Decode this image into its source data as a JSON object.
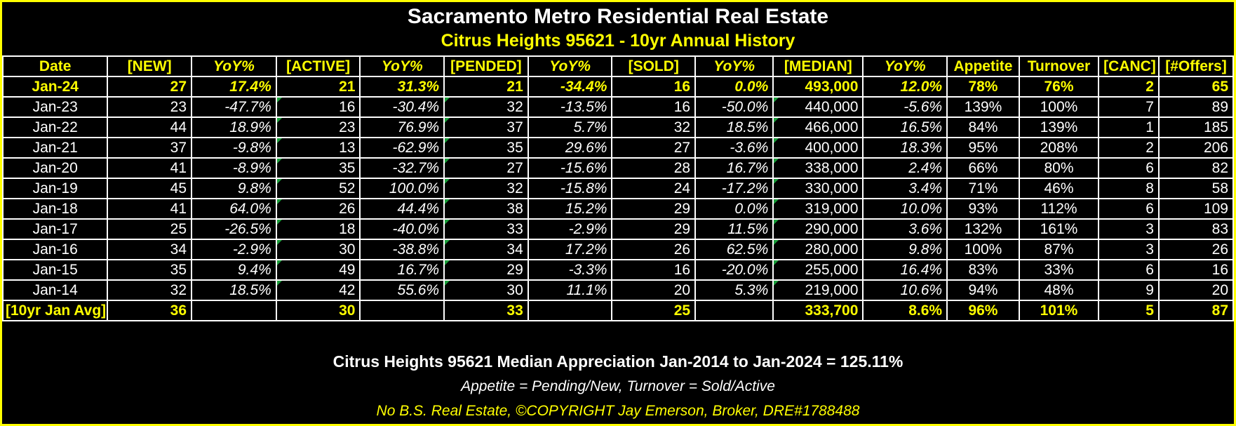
{
  "title": "Sacramento Metro Residential Real Estate",
  "subtitle": "Citrus Heights 95621 - 10yr Annual History",
  "columns": [
    "Date",
    "[NEW]",
    "YoY%",
    "[ACTIVE]",
    "YoY%",
    "[PENDED]",
    "YoY%",
    "[SOLD]",
    "YoY%",
    "[MEDIAN]",
    "YoY%",
    "Appetite",
    "Turnover",
    "[CANC]",
    "[#Offers]"
  ],
  "rows": [
    [
      "Jan-24",
      "27",
      "17.4%",
      "21",
      "31.3%",
      "21",
      "-34.4%",
      "16",
      "0.0%",
      "493,000",
      "12.0%",
      "78%",
      "76%",
      "2",
      "65"
    ],
    [
      "Jan-23",
      "23",
      "-47.7%",
      "16",
      "-30.4%",
      "32",
      "-13.5%",
      "16",
      "-50.0%",
      "440,000",
      "-5.6%",
      "139%",
      "100%",
      "7",
      "89"
    ],
    [
      "Jan-22",
      "44",
      "18.9%",
      "23",
      "76.9%",
      "37",
      "5.7%",
      "32",
      "18.5%",
      "466,000",
      "16.5%",
      "84%",
      "139%",
      "1",
      "185"
    ],
    [
      "Jan-21",
      "37",
      "-9.8%",
      "13",
      "-62.9%",
      "35",
      "29.6%",
      "27",
      "-3.6%",
      "400,000",
      "18.3%",
      "95%",
      "208%",
      "2",
      "206"
    ],
    [
      "Jan-20",
      "41",
      "-8.9%",
      "35",
      "-32.7%",
      "27",
      "-15.6%",
      "28",
      "16.7%",
      "338,000",
      "2.4%",
      "66%",
      "80%",
      "6",
      "82"
    ],
    [
      "Jan-19",
      "45",
      "9.8%",
      "52",
      "100.0%",
      "32",
      "-15.8%",
      "24",
      "-17.2%",
      "330,000",
      "3.4%",
      "71%",
      "46%",
      "8",
      "58"
    ],
    [
      "Jan-18",
      "41",
      "64.0%",
      "26",
      "44.4%",
      "38",
      "15.2%",
      "29",
      "0.0%",
      "319,000",
      "10.0%",
      "93%",
      "112%",
      "6",
      "109"
    ],
    [
      "Jan-17",
      "25",
      "-26.5%",
      "18",
      "-40.0%",
      "33",
      "-2.9%",
      "29",
      "11.5%",
      "290,000",
      "3.6%",
      "132%",
      "161%",
      "3",
      "83"
    ],
    [
      "Jan-16",
      "34",
      "-2.9%",
      "30",
      "-38.8%",
      "34",
      "17.2%",
      "26",
      "62.5%",
      "280,000",
      "9.8%",
      "100%",
      "87%",
      "3",
      "26"
    ],
    [
      "Jan-15",
      "35",
      "9.4%",
      "49",
      "16.7%",
      "29",
      "-3.3%",
      "16",
      "-20.0%",
      "255,000",
      "16.4%",
      "83%",
      "33%",
      "6",
      "16"
    ],
    [
      "Jan-14",
      "32",
      "18.5%",
      "42",
      "55.6%",
      "30",
      "11.1%",
      "20",
      "5.3%",
      "219,000",
      "10.6%",
      "94%",
      "48%",
      "9",
      "20"
    ]
  ],
  "avg_row": [
    "[10yr Jan Avg]",
    "36",
    "",
    "30",
    "",
    "33",
    "",
    "25",
    "",
    "333,700",
    "8.6%",
    "96%",
    "101%",
    "5",
    "87"
  ],
  "footer": {
    "appreciation": "Citrus Heights 95621 Median Appreciation Jan-2014 to Jan-2024 = 125.11%",
    "definitions": "Appetite = Pending/New, Turnover = Sold/Active",
    "copyright": "No B.S. Real Estate, ©COPYRIGHT Jay Emerson, Broker, DRE#1788488"
  },
  "colors": {
    "accent": "#ffff00",
    "background": "#000000",
    "text": "#ffffff",
    "cell_marker": "#1a9e3a"
  }
}
